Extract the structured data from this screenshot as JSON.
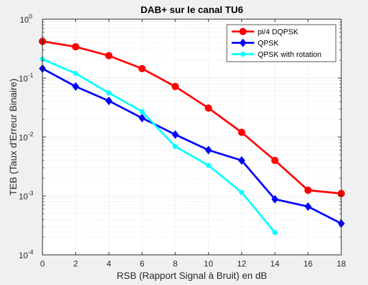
{
  "chart_data": {
    "type": "line",
    "title": "DAB+ sur le canal TU6",
    "xlabel": "RSB (Rapport Signal à Bruit) en dB",
    "ylabel": "TEB (Taux d'Erreur Binaire)",
    "xlim": [
      0,
      18
    ],
    "ylim": [
      0.0001,
      1
    ],
    "yscale": "log",
    "grid": "major and minor (dotted)",
    "legend_position": "top-right",
    "x_ticks": [
      "0",
      "2",
      "4",
      "6",
      "8",
      "10",
      "12",
      "14",
      "16",
      "18"
    ],
    "y_ticks": [
      {
        "base": "10",
        "exp": "-4"
      },
      {
        "base": "10",
        "exp": "-3"
      },
      {
        "base": "10",
        "exp": "-2"
      },
      {
        "base": "10",
        "exp": "-1"
      },
      {
        "base": "10",
        "exp": "0"
      }
    ],
    "series": [
      {
        "name": "pi/4 DQPSK",
        "color": "#ff0000",
        "marker": "circle",
        "x": [
          0,
          2,
          4,
          6,
          8,
          10,
          12,
          14,
          16,
          18
        ],
        "y": [
          0.42,
          0.34,
          0.24,
          0.145,
          0.072,
          0.031,
          0.012,
          0.004,
          0.00125,
          0.0011
        ]
      },
      {
        "name": "QPSK",
        "color": "#0000ff",
        "marker": "diamond",
        "x": [
          0,
          2,
          4,
          6,
          8,
          10,
          12,
          14,
          16,
          18
        ],
        "y": [
          0.145,
          0.072,
          0.041,
          0.021,
          0.011,
          0.006,
          0.004,
          0.00088,
          0.00066,
          0.00034
        ]
      },
      {
        "name": "QPSK with rotation",
        "color": "#00ffff",
        "marker": "circle-small",
        "x": [
          0,
          2,
          4,
          6,
          8,
          10,
          12,
          14
        ],
        "y": [
          0.21,
          0.12,
          0.056,
          0.027,
          0.0069,
          0.0033,
          0.00115,
          0.00024
        ]
      }
    ]
  }
}
